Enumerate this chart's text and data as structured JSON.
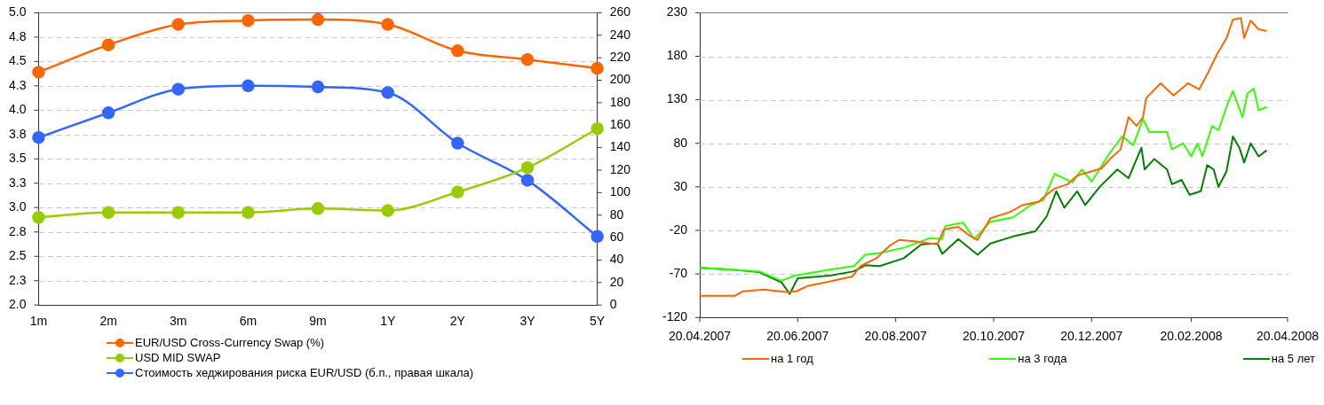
{
  "chart_data": [
    {
      "type": "line",
      "categories": [
        "1m",
        "2m",
        "3m",
        "6m",
        "9m",
        "1Y",
        "2Y",
        "3Y",
        "5Y"
      ],
      "series": [
        {
          "name": "EUR/USD Cross-Currency Swap (%)",
          "color": "#ff6600",
          "values": [
            4.39,
            4.67,
            4.88,
            4.92,
            4.93,
            4.88,
            4.61,
            4.52,
            4.43
          ]
        },
        {
          "name": "USD MID SWAP",
          "color": "#99cc00",
          "values": [
            2.9,
            2.95,
            2.95,
            2.95,
            2.99,
            2.97,
            3.16,
            3.41,
            3.81
          ]
        },
        {
          "name": "Стоимость хеджирования риска EUR/USD (б.п., правая шкала)",
          "color": "#3366ff",
          "axis": "y2",
          "values": [
            149,
            171,
            192,
            195,
            194,
            189,
            144,
            111,
            61
          ]
        }
      ],
      "ylim": [
        2,
        5
      ],
      "yticks": [
        {
          "value": 2,
          "label": "2.0"
        },
        {
          "value": 2.25,
          "label": "2.3"
        },
        {
          "value": 2.5,
          "label": "2.5"
        },
        {
          "value": 2.75,
          "label": "2.8"
        },
        {
          "value": 3,
          "label": "3.0"
        },
        {
          "value": 3.25,
          "label": "3.3"
        },
        {
          "value": 3.5,
          "label": "3.5"
        },
        {
          "value": 3.75,
          "label": "3.8"
        },
        {
          "value": 4,
          "label": "4.0"
        },
        {
          "value": 4.25,
          "label": "4.3"
        },
        {
          "value": 4.5,
          "label": "4.5"
        },
        {
          "value": 4.75,
          "label": "4.8"
        },
        {
          "value": 5,
          "label": "5.0"
        }
      ],
      "y2lim": [
        0,
        260
      ],
      "y2ticks": [
        0,
        20,
        40,
        60,
        80,
        100,
        120,
        140,
        160,
        180,
        200,
        220,
        240,
        260
      ],
      "grid": "y",
      "legend": "bottom",
      "marker": "circle"
    },
    {
      "type": "line",
      "series": [
        {
          "name": "на 1 год",
          "color": "#ff6600",
          "x": [
            "2007-04-20",
            "2007-05-12",
            "2007-05-17",
            "2007-05-30",
            "2007-06-14",
            "2007-06-19",
            "2007-06-26",
            "2007-07-09",
            "2007-07-24",
            "2007-07-29",
            "2007-08-08",
            "2007-08-16",
            "2007-08-22",
            "2007-09-03",
            "2007-09-15",
            "2007-09-19",
            "2007-09-28",
            "2007-10-05",
            "2007-10-10",
            "2007-10-18",
            "2007-10-30",
            "2007-11-07",
            "2007-11-17",
            "2007-11-22",
            "2007-11-27",
            "2007-12-05",
            "2007-12-11",
            "2007-12-20",
            "2007-12-26",
            "2008-01-01",
            "2008-01-07",
            "2008-01-12",
            "2008-01-17",
            "2008-01-21",
            "2008-01-23",
            "2008-02-01",
            "2008-02-09",
            "2008-02-18",
            "2008-02-25",
            "2008-03-02",
            "2008-03-07",
            "2008-03-13",
            "2008-03-17",
            "2008-03-22",
            "2008-03-24",
            "2008-03-28",
            "2008-04-02",
            "2008-04-07"
          ],
          "values": [
            -95,
            -95,
            -90,
            -88,
            -91,
            -90,
            -84,
            -79,
            -73,
            -61,
            -52,
            -38,
            -31,
            -33,
            -36,
            -19,
            -16,
            -26,
            -31,
            -6,
            1,
            9,
            13,
            21,
            28,
            33,
            43,
            48,
            51,
            63,
            73,
            110,
            100,
            110,
            132,
            149,
            135,
            149,
            142,
            163,
            182,
            201,
            222,
            224,
            201,
            221,
            211,
            209
          ]
        },
        {
          "name": "на 3 года",
          "color": "#33ff00",
          "x": [
            "2007-04-20",
            "2007-05-10",
            "2007-05-27",
            "2007-06-10",
            "2007-06-18",
            "2007-07-10",
            "2007-07-25",
            "2007-08-01",
            "2007-08-10",
            "2007-08-25",
            "2007-09-10",
            "2007-09-18",
            "2007-09-20",
            "2007-10-01",
            "2007-10-08",
            "2007-10-18",
            "2007-11-01",
            "2007-11-12",
            "2007-11-20",
            "2007-11-27",
            "2007-12-08",
            "2007-12-14",
            "2007-12-20",
            "2007-12-31",
            "2008-01-08",
            "2008-01-15",
            "2008-01-21",
            "2008-01-25",
            "2008-02-05",
            "2008-02-08",
            "2008-02-15",
            "2008-02-20",
            "2008-02-24",
            "2008-02-27",
            "2008-03-04",
            "2008-03-08",
            "2008-03-14",
            "2008-03-17",
            "2008-03-20",
            "2008-03-23",
            "2008-03-26",
            "2008-03-30",
            "2008-04-02",
            "2008-04-07"
          ],
          "values": [
            -63,
            -65,
            -67,
            -78,
            -72,
            -65,
            -61,
            -48,
            -46,
            -40,
            -29,
            -30,
            -15,
            -11,
            -30,
            -10,
            -5,
            9,
            15,
            45,
            35,
            50,
            36,
            68,
            88,
            78,
            108,
            93,
            93,
            73,
            80,
            65,
            80,
            65,
            100,
            95,
            127,
            140,
            125,
            110,
            137,
            143,
            118,
            122
          ]
        },
        {
          "name": "на 5 лет",
          "color": "#008000",
          "x": [
            "2007-04-20",
            "2007-05-10",
            "2007-05-27",
            "2007-06-10",
            "2007-06-15",
            "2007-06-20",
            "2007-07-10",
            "2007-07-25",
            "2007-08-01",
            "2007-08-10",
            "2007-08-25",
            "2007-09-05",
            "2007-09-15",
            "2007-09-18",
            "2007-09-28",
            "2007-10-10",
            "2007-10-18",
            "2007-11-01",
            "2007-11-15",
            "2007-11-22",
            "2007-11-28",
            "2007-12-03",
            "2007-12-11",
            "2007-12-16",
            "2007-12-25",
            "2008-01-05",
            "2008-01-12",
            "2008-01-20",
            "2008-01-22",
            "2008-01-28",
            "2008-02-05",
            "2008-02-08",
            "2008-02-14",
            "2008-02-19",
            "2008-02-26",
            "2008-03-01",
            "2008-03-05",
            "2008-03-08",
            "2008-03-13",
            "2008-03-17",
            "2008-03-21",
            "2008-03-24",
            "2008-03-28",
            "2008-04-02",
            "2008-04-07"
          ],
          "values": [
            -63,
            -65,
            -68,
            -80,
            -93,
            -75,
            -72,
            -67,
            -60,
            -61,
            -52,
            -36,
            -35,
            -47,
            -30,
            -48,
            -35,
            -27,
            -21,
            -4,
            25,
            6,
            25,
            9,
            30,
            50,
            40,
            75,
            50,
            62,
            50,
            33,
            38,
            21,
            25,
            55,
            50,
            30,
            48,
            88,
            75,
            58,
            80,
            65,
            72
          ]
        }
      ],
      "xlim": [
        "2007-04-20",
        "2008-04-20"
      ],
      "xticks": [
        {
          "value": "2007-04-20",
          "label": "20.04.2007"
        },
        {
          "value": "2007-06-20",
          "label": "20.06.2007"
        },
        {
          "value": "2007-08-20",
          "label": "20.08.2007"
        },
        {
          "value": "2007-10-20",
          "label": "20.10.2007"
        },
        {
          "value": "2007-12-20",
          "label": "20.12.2007"
        },
        {
          "value": "2008-02-20",
          "label": "20.02.2008"
        },
        {
          "value": "2008-04-20",
          "label": "20.04.2008"
        }
      ],
      "ylim": [
        -120,
        230
      ],
      "yticks": [
        -120,
        -70,
        -20,
        30,
        80,
        130,
        180,
        230
      ],
      "grid": "y",
      "legend": "bottom",
      "marker": "none"
    }
  ]
}
